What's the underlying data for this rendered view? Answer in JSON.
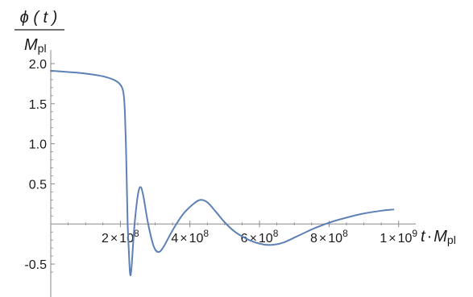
{
  "chart_data": {
    "type": "line",
    "xlabel": {
      "main": "t",
      "dot": "·",
      "mass": "M",
      "sub": "pl"
    },
    "ylabel": {
      "numerator": "ϕ ( t )",
      "mass": "M",
      "sub": "pl"
    },
    "xlim": [
      0,
      1040000000
    ],
    "ylim": [
      -0.65,
      2.0
    ],
    "grid": false,
    "x_ticks": [
      {
        "value": 200000000,
        "mantissa": "2",
        "times": "×",
        "base": "10",
        "exp": "8"
      },
      {
        "value": 400000000,
        "mantissa": "4",
        "times": "×",
        "base": "10",
        "exp": "8"
      },
      {
        "value": 600000000,
        "mantissa": "6",
        "times": "×",
        "base": "10",
        "exp": "8"
      },
      {
        "value": 800000000,
        "mantissa": "8",
        "times": "×",
        "base": "10",
        "exp": "8"
      },
      {
        "value": 1000000000,
        "mantissa": "1",
        "times": "×",
        "base": "10",
        "exp": "9"
      }
    ],
    "y_ticks": [
      {
        "value": 2.0,
        "label": "2.0"
      },
      {
        "value": 1.5,
        "label": "1.5"
      },
      {
        "value": 1.0,
        "label": "1.0"
      },
      {
        "value": 0.5,
        "label": "0.5"
      },
      {
        "value": -0.5,
        "label": "-0.5"
      }
    ],
    "series": [
      {
        "color": "#5e81b5",
        "points": [
          [
            0,
            1.91
          ],
          [
            20000000,
            1.905
          ],
          [
            50000000,
            1.895
          ],
          [
            80000000,
            1.885
          ],
          [
            110000000,
            1.87
          ],
          [
            140000000,
            1.85
          ],
          [
            160000000,
            1.83
          ],
          [
            180000000,
            1.8
          ],
          [
            195000000,
            1.76
          ],
          [
            205000000,
            1.7
          ],
          [
            210000000,
            1.6
          ],
          [
            213000000,
            1.4
          ],
          [
            216000000,
            1.0
          ],
          [
            219000000,
            0.4
          ],
          [
            221000000,
            0.0
          ],
          [
            224000000,
            -0.3
          ],
          [
            228000000,
            -0.62
          ],
          [
            232000000,
            -0.55
          ],
          [
            240000000,
            -0.05
          ],
          [
            250000000,
            0.35
          ],
          [
            258000000,
            0.46
          ],
          [
            266000000,
            0.35
          ],
          [
            280000000,
            0.0
          ],
          [
            296000000,
            -0.28
          ],
          [
            310000000,
            -0.35
          ],
          [
            325000000,
            -0.28
          ],
          [
            350000000,
            -0.08
          ],
          [
            380000000,
            0.12
          ],
          [
            410000000,
            0.25
          ],
          [
            430000000,
            0.3
          ],
          [
            450000000,
            0.27
          ],
          [
            475000000,
            0.15
          ],
          [
            500000000,
            0.02
          ],
          [
            530000000,
            -0.1
          ],
          [
            570000000,
            -0.2
          ],
          [
            610000000,
            -0.255
          ],
          [
            640000000,
            -0.26
          ],
          [
            670000000,
            -0.23
          ],
          [
            710000000,
            -0.15
          ],
          [
            760000000,
            -0.05
          ],
          [
            810000000,
            0.03
          ],
          [
            860000000,
            0.09
          ],
          [
            900000000,
            0.13
          ],
          [
            950000000,
            0.165
          ],
          [
            985000000,
            0.18
          ]
        ]
      }
    ]
  }
}
